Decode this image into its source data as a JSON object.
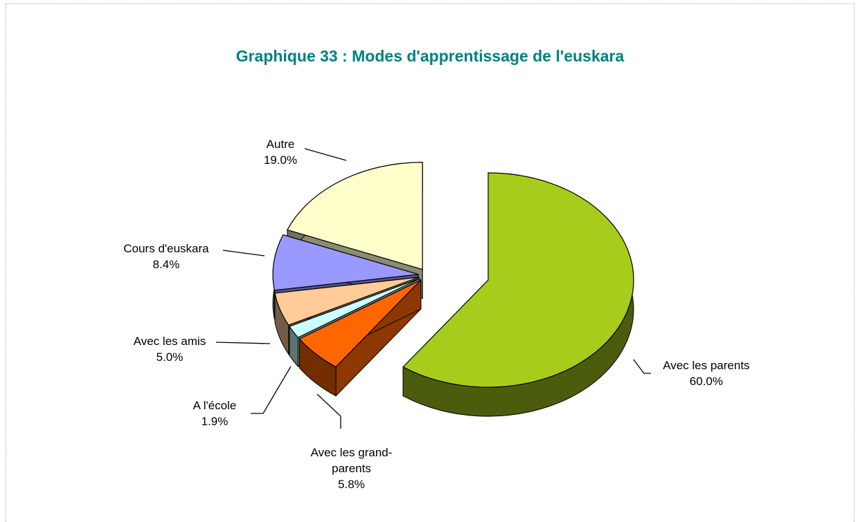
{
  "chart_data": {
    "type": "pie",
    "title": "Graphique 33 : Modes d'apprentissage de l'euskara",
    "categories": [
      "Avec les parents",
      "Avec les grand-parents",
      "A l'école",
      "Avec les amis",
      "Cours d'euskara",
      "Autre"
    ],
    "values": [
      60.0,
      5.8,
      1.9,
      5.0,
      8.4,
      19.0
    ],
    "value_labels": [
      "60.0%",
      "5.8%",
      "1.9%",
      "5.0%",
      "8.4%",
      "19.0%"
    ],
    "colors": [
      "#a8cc1c",
      "#ff6600",
      "#ccffff",
      "#ffcc99",
      "#9999ff",
      "#ffffcc"
    ]
  }
}
